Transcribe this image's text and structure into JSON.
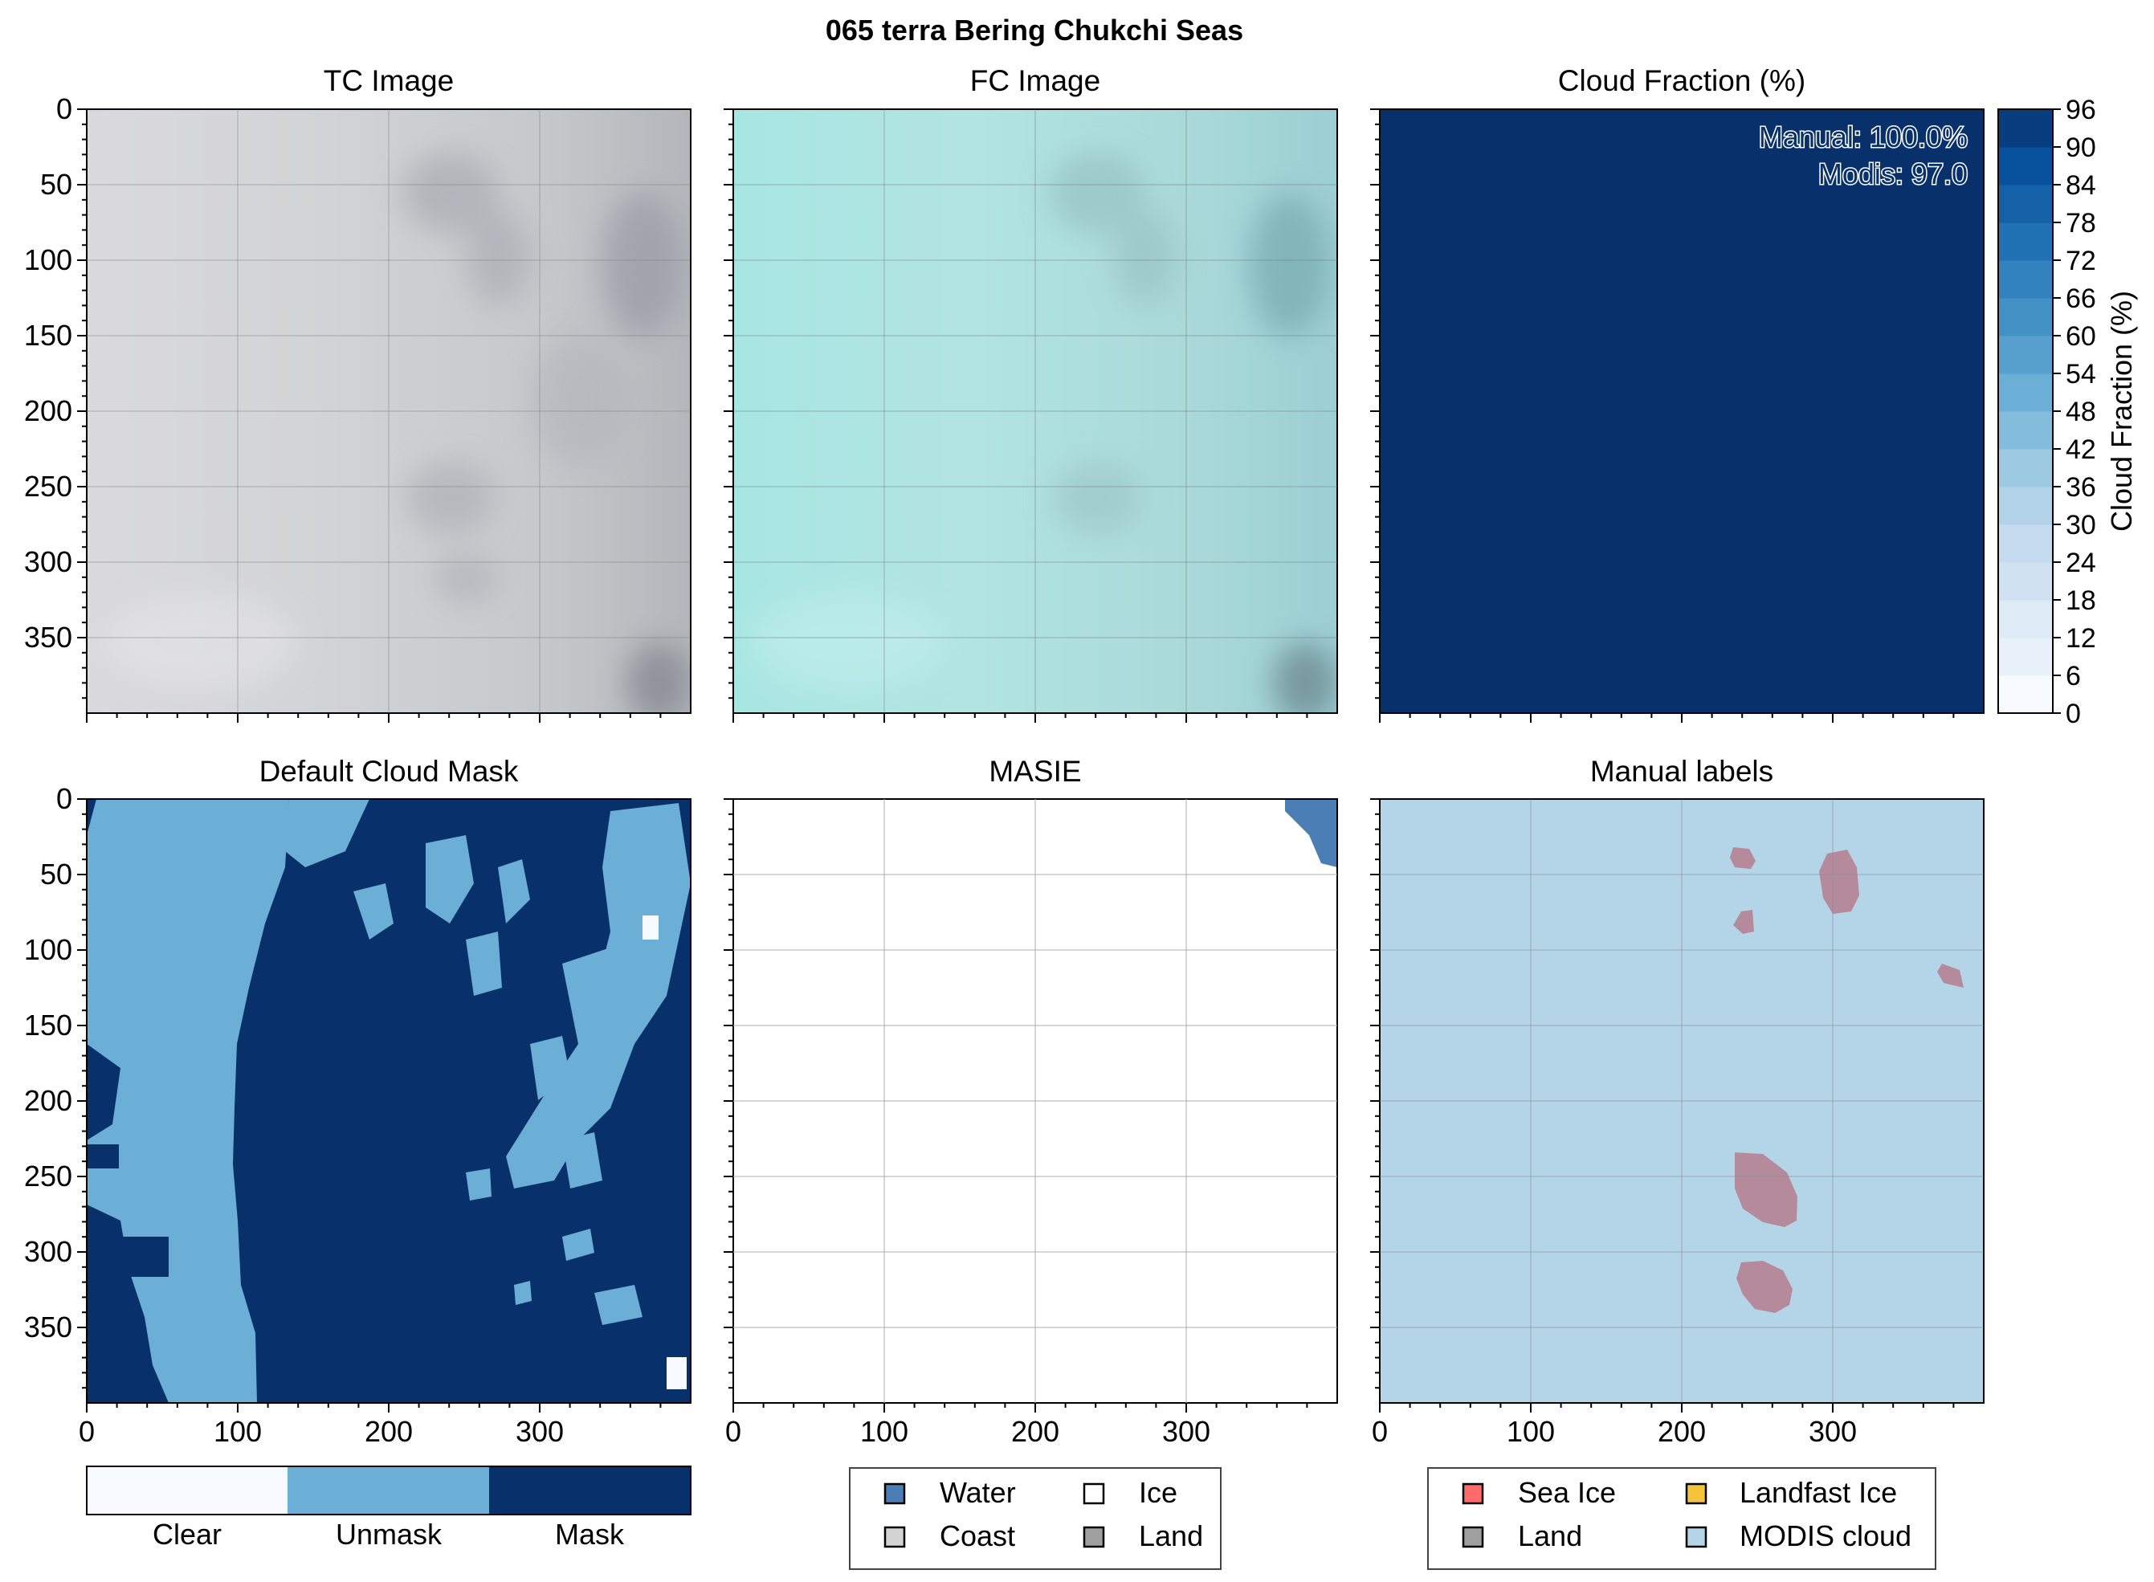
{
  "figure": {
    "suptitle": "065 terra Bering Chukchi Seas"
  },
  "colors": {
    "mask_dark": "#08306b",
    "mask_mid": "#6baed6",
    "mask_clear": "#f7fbff",
    "masie_water": "#4a7eb5",
    "manual_bg": "#b4d4e8",
    "manual_ice": "#b58b9c",
    "grid": "#b0b0b0"
  },
  "panels": {
    "tc": {
      "title": "TC Image"
    },
    "fc": {
      "title": "FC Image"
    },
    "cloud": {
      "title": "Cloud Fraction (%)",
      "annotation_manual": "Manual: 100.0%",
      "annotation_modis": "Modis: 97.0",
      "colorbar_label": "Cloud Fraction (%)",
      "colorbar_ticks": [
        "0",
        "6",
        "12",
        "18",
        "24",
        "30",
        "36",
        "42",
        "48",
        "54",
        "60",
        "66",
        "72",
        "78",
        "84",
        "90",
        "96"
      ]
    },
    "mask": {
      "title": "Default Cloud Mask",
      "legend": [
        "Clear",
        "Unmask",
        "Mask"
      ]
    },
    "masie": {
      "title": "MASIE",
      "legend": [
        {
          "label": "Water",
          "color": "#4a7eb5"
        },
        {
          "label": "Ice",
          "color": "#ffffff"
        },
        {
          "label": "Coast",
          "color": "#d3d3d3"
        },
        {
          "label": "Land",
          "color": "#a0a0a0"
        }
      ]
    },
    "manual": {
      "title": "Manual labels",
      "legend": [
        {
          "label": "Sea Ice",
          "color": "#ff6b6b"
        },
        {
          "label": "Landfast Ice",
          "color": "#f5c43a"
        },
        {
          "label": "Land",
          "color": "#a0a0a0"
        },
        {
          "label": "MODIS cloud",
          "color": "#b4d4e8"
        }
      ]
    }
  },
  "axes": {
    "y_ticks": [
      "0",
      "50",
      "100",
      "150",
      "200",
      "250",
      "300",
      "350"
    ],
    "x_ticks": [
      "0",
      "100",
      "200",
      "300"
    ]
  },
  "chart_data": [
    {
      "type": "heatmap",
      "title": "TC Image",
      "xlim": [
        0,
        400
      ],
      "ylim": [
        400,
        0
      ]
    },
    {
      "type": "heatmap",
      "title": "FC Image",
      "xlim": [
        0,
        400
      ],
      "ylim": [
        400,
        0
      ]
    },
    {
      "type": "heatmap",
      "title": "Cloud Fraction (%)",
      "xlim": [
        0,
        400
      ],
      "ylim": [
        400,
        0
      ],
      "manual_percent": 100.0,
      "modis_percent": 97.0,
      "colorbar_range": [
        0,
        96
      ]
    },
    {
      "type": "heatmap",
      "title": "Default Cloud Mask",
      "xlim": [
        0,
        400
      ],
      "ylim": [
        400,
        0
      ],
      "categories": [
        "Clear",
        "Unmask",
        "Mask"
      ]
    },
    {
      "type": "heatmap",
      "title": "MASIE",
      "xlim": [
        0,
        400
      ],
      "ylim": [
        400,
        0
      ],
      "categories": [
        "Water",
        "Ice",
        "Coast",
        "Land"
      ]
    },
    {
      "type": "heatmap",
      "title": "Manual labels",
      "xlim": [
        0,
        400
      ],
      "ylim": [
        400,
        0
      ],
      "categories": [
        "Sea Ice",
        "Landfast Ice",
        "Land",
        "MODIS cloud"
      ]
    }
  ]
}
